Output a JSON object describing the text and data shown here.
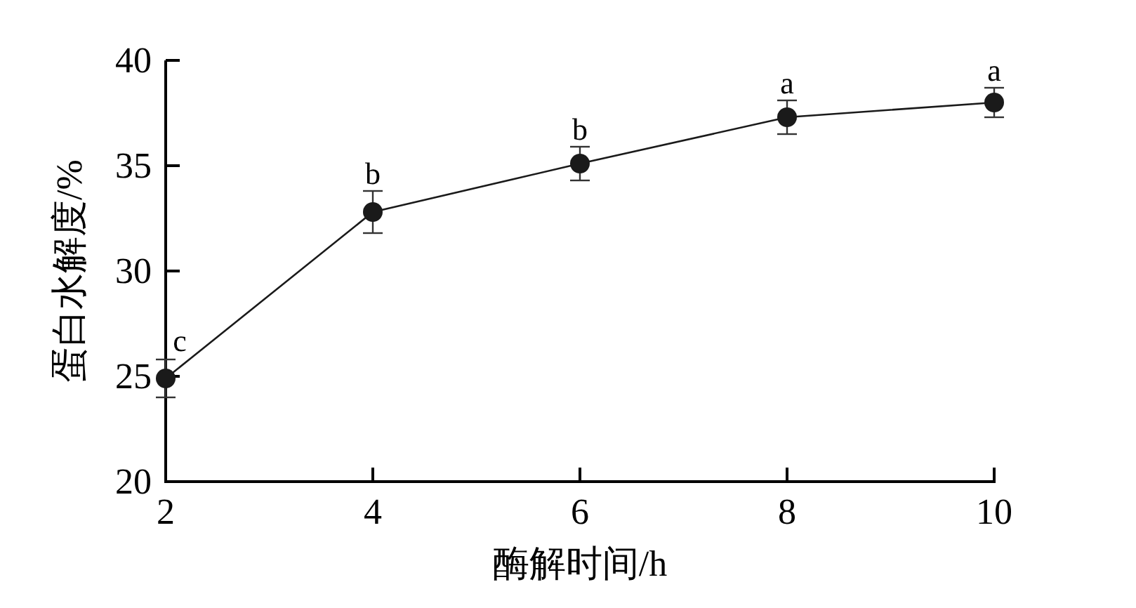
{
  "chart_data": {
    "type": "line",
    "xlabel": "酶解时间/h",
    "ylabel": "蛋白水解度/%",
    "x": [
      2,
      4,
      6,
      8,
      10
    ],
    "series": [
      {
        "color": "#1a1a1a",
        "values": [
          24.9,
          32.8,
          35.1,
          37.3,
          38.0
        ],
        "errors": [
          0.9,
          1.0,
          0.8,
          0.8,
          0.7
        ]
      }
    ],
    "xlim": [
      2,
      10
    ],
    "ylim": [
      20,
      40
    ],
    "xticks": [
      2,
      4,
      6,
      8,
      10
    ],
    "yticks": [
      20,
      25,
      30,
      35,
      40
    ],
    "marker": "circle",
    "line_style": "solid",
    "annotations": [
      {
        "text": "c",
        "x": 2,
        "y": 24.9
      },
      {
        "text": "b",
        "x": 4,
        "y": 32.8
      },
      {
        "text": "b",
        "x": 6,
        "y": 35.1
      },
      {
        "text": "a",
        "x": 8,
        "y": 37.3
      },
      {
        "text": "a",
        "x": 10,
        "y": 38.0
      }
    ]
  }
}
